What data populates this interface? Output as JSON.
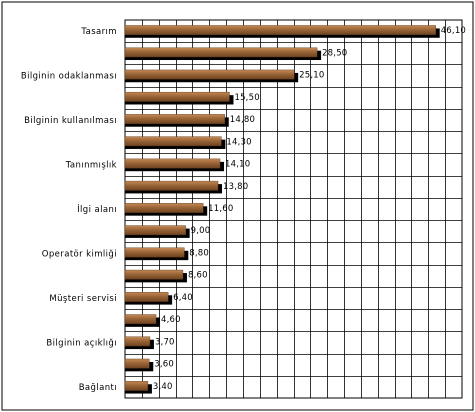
{
  "chart_data": {
    "type": "bar",
    "orientation": "horizontal",
    "categories": [
      "Tasarım",
      "",
      "Bilginin odaklanması",
      "",
      "Bilginin kullanılması",
      "",
      "Tanınmışlık",
      "",
      "İlgi alanı",
      "",
      "Operatör kimliği",
      "",
      "Müşteri servisi",
      "",
      "Bilginin açıklığı",
      "",
      "Bağlantı"
    ],
    "values": [
      46.1,
      28.5,
      25.1,
      15.5,
      14.8,
      14.3,
      14.1,
      13.8,
      11.6,
      9.0,
      8.8,
      8.6,
      6.4,
      4.6,
      3.7,
      3.6,
      3.4
    ],
    "value_labels": [
      "46,10",
      "28,50",
      "25,10",
      "15,50",
      "14,80",
      "14,30",
      "14,10",
      "13,80",
      "11,60",
      "9,00",
      "8,80",
      "8,60",
      "6,40",
      "4,60",
      "3,70",
      "3,60",
      "3,40"
    ],
    "xlim": [
      0,
      50
    ],
    "x_gridline_step": 2.5,
    "grid": true,
    "legend": "none",
    "bar_style": "3d-shadow",
    "colors": {
      "bar": "#8f5b32",
      "bar_highlight": "#c58a57",
      "shadow": "#000000",
      "grid": "#000000",
      "text": "#000000"
    }
  }
}
